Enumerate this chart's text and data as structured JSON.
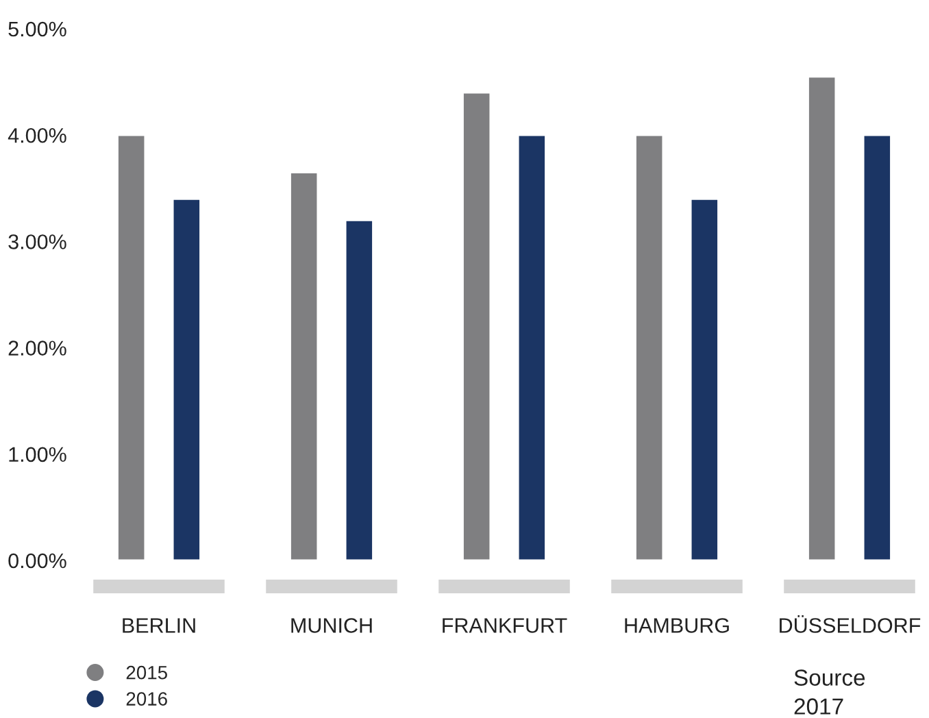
{
  "chart_data": {
    "type": "bar",
    "categories": [
      "BERLIN",
      "MUNICH",
      "FRANKFURT",
      "HAMBURG",
      "DÜSSELDORF"
    ],
    "series": [
      {
        "name": "2015",
        "color": "#7f7f81",
        "values": [
          4.0,
          3.65,
          4.4,
          4.0,
          4.55
        ]
      },
      {
        "name": "2016",
        "color": "#1b3564",
        "values": [
          3.4,
          3.2,
          4.0,
          3.4,
          4.0
        ]
      }
    ],
    "ylim": [
      0,
      5
    ],
    "yticks": [
      {
        "value": 0,
        "label": "0.00%"
      },
      {
        "value": 1,
        "label": "1.00%"
      },
      {
        "value": 2,
        "label": "2.00%"
      },
      {
        "value": 3,
        "label": "3.00%"
      },
      {
        "value": 4,
        "label": "4.00%"
      },
      {
        "value": 5,
        "label": "5.00%"
      }
    ],
    "grid": false,
    "legend": "bottom left",
    "annotations": [
      "Source",
      "2017"
    ]
  }
}
